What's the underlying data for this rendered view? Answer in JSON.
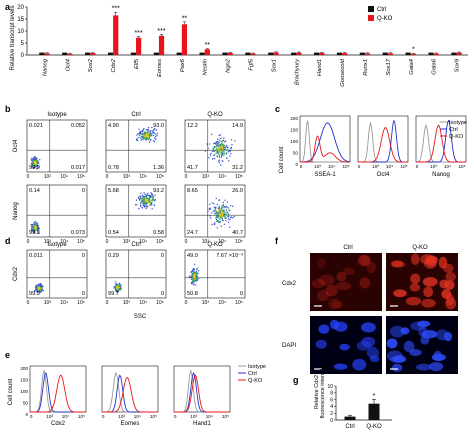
{
  "panel_letters": [
    "a",
    "b",
    "c",
    "d",
    "e",
    "f",
    "g"
  ],
  "colors": {
    "ctrl": "#111111",
    "qko": "#e8141b",
    "isotype": "#9a9a9a",
    "ctrl_line": "#2330c8",
    "flow_blue": "#3b57c8",
    "flow_green": "#39b54a"
  },
  "chart_data": [
    {
      "panel": "a",
      "type": "bar",
      "ylabel": "Relative transcript levels",
      "ylim": [
        0,
        20
      ],
      "yticks": [
        0,
        5,
        10,
        15,
        20
      ],
      "categories": [
        "Nanog",
        "Oct4",
        "Sox2",
        "Cdx2",
        "Elf5",
        "Eomes",
        "Pax6",
        "Nestin",
        "Ngn2",
        "Fgf5",
        "Sox1",
        "Brachyury",
        "Hand1",
        "Goosecoid",
        "Runx1",
        "Sox17",
        "Gata4",
        "Gata6",
        "Sox9"
      ],
      "series": [
        {
          "name": "Ctrl",
          "values": [
            1,
            1,
            1,
            1,
            1,
            1,
            1,
            1,
            1,
            1,
            1,
            1,
            1,
            1,
            1,
            1,
            1,
            1,
            1
          ]
        },
        {
          "name": "Q-KO",
          "values": [
            0.7,
            0.5,
            0.8,
            16.5,
            7.2,
            8.0,
            12.8,
            2.4,
            0.9,
            0.6,
            1.1,
            1.0,
            0.9,
            0.8,
            0.7,
            0.7,
            0.5,
            0.6,
            1.0
          ]
        }
      ],
      "annotations": [
        "",
        "",
        "",
        "***",
        "***",
        "***",
        "**",
        "**",
        "",
        "",
        "",
        "",
        "",
        "",
        "",
        "",
        "*",
        "",
        ""
      ]
    },
    {
      "panel": "g",
      "type": "bar",
      "ylabel": "Relative Cdx2 fluorescence intensity",
      "ylim": [
        0,
        10
      ],
      "yticks": [
        0,
        2,
        4,
        6,
        8,
        10
      ],
      "categories": [
        "Ctrl",
        "Q-KO"
      ],
      "values": [
        1.0,
        4.8
      ],
      "errors": [
        0.4,
        1.3
      ],
      "annotations": [
        "",
        "*"
      ]
    }
  ],
  "legend_a": [
    "Ctrl",
    "Q-KO"
  ],
  "panel_b": {
    "columns": [
      "Isotype",
      "Ctrl",
      "Q-KO"
    ],
    "row_labels": [
      "Oct4",
      "Nanog"
    ],
    "xaxis": "SSEA-1",
    "ticks": [
      "0",
      "10³",
      "10⁴",
      "10⁵"
    ],
    "quadrants": [
      [
        [
          "0.021",
          "0.052",
          "99.9",
          "0.017"
        ],
        [
          "4.90",
          "93.0",
          "0.78",
          "1.36"
        ],
        [
          "12.2",
          "14.9",
          "41.7",
          "31.2"
        ]
      ],
      [
        [
          "0.14",
          "0",
          "99.8",
          "0.073"
        ],
        [
          "5.68",
          "93.2",
          "0.54",
          "0.58"
        ],
        [
          "8.65",
          "26.0",
          "24.7",
          "40.7"
        ]
      ]
    ]
  },
  "panel_c": {
    "ylabel": "Cell count",
    "xlabels": [
      "SSEA-1",
      "Oct4",
      "Nanog"
    ],
    "legend": [
      "Isotype",
      "Ctrl",
      "Q-KO"
    ],
    "yticks": [
      "200",
      "150",
      "100",
      "50",
      "0"
    ],
    "xticks": [
      "0",
      "10³",
      "10⁴",
      "10⁵"
    ]
  },
  "panel_d": {
    "columns": [
      "Isotype",
      "Ctrl",
      "Q-KO"
    ],
    "ylabel": "Cdx2",
    "xaxis": "SSC",
    "ticks": [
      "0",
      "10³",
      "10⁴",
      "10⁵"
    ],
    "quadrants": [
      [
        "0.011",
        "0",
        "99.9",
        "0"
      ],
      [
        "0.29",
        "0",
        "99.7",
        "0"
      ],
      [
        "49.0",
        "7.67 ×10⁻³",
        "50.8",
        "0"
      ]
    ]
  },
  "panel_e": {
    "ylabel": "Cell count",
    "xlabels": [
      "Cdx2",
      "Eomes",
      "Hand1"
    ],
    "legend": [
      "Isotype",
      "Ctrl",
      "Q-KO"
    ],
    "yticks": [
      "200",
      "150",
      "100",
      "50",
      "0"
    ],
    "xticks": [
      "0",
      "10³",
      "10⁴",
      "10⁵"
    ]
  },
  "panel_f": {
    "columns": [
      "Ctrl",
      "Q-KO"
    ],
    "rows": [
      "Cdx2",
      "DAPI"
    ]
  }
}
